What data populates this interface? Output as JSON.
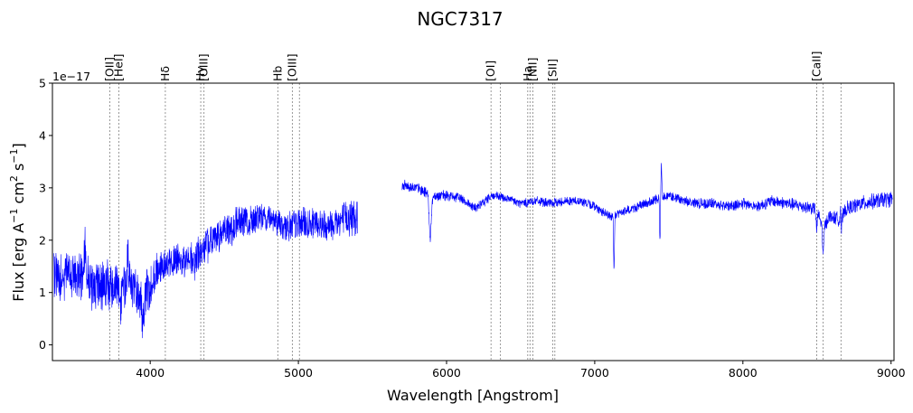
{
  "chart_data": {
    "type": "line",
    "title": "NGC7317",
    "xlabel": "Wavelength [Angstrom]",
    "ylabel_parts": {
      "main": "Flux [erg A",
      "sup1": "−1",
      "mid": " cm",
      "sup2": "2",
      "mid2": " s",
      "sup3": "−1",
      "end": "]"
    },
    "y_offset_label": "1e−17",
    "xlim": [
      3340,
      9020
    ],
    "ylim": [
      -0.3,
      5
    ],
    "xticks": [
      4000,
      5000,
      6000,
      7000,
      8000,
      9000
    ],
    "yticks": [
      0,
      1,
      2,
      3,
      4,
      5
    ],
    "series_color": "#0000ff",
    "line_color": "#808080",
    "segments": [
      {
        "x_start": 3350,
        "x_end": 5400,
        "anchors": [
          [
            3350,
            1.3
          ],
          [
            3500,
            1.35
          ],
          [
            3600,
            1.15
          ],
          [
            3700,
            1.1
          ],
          [
            3800,
            1.25
          ],
          [
            3900,
            1.0
          ],
          [
            4000,
            1.05
          ],
          [
            4050,
            1.45
          ],
          [
            4150,
            1.6
          ],
          [
            4300,
            1.6
          ],
          [
            4400,
            1.95
          ],
          [
            4500,
            2.15
          ],
          [
            4600,
            2.35
          ],
          [
            4700,
            2.4
          ],
          [
            4800,
            2.45
          ],
          [
            4900,
            2.25
          ],
          [
            5000,
            2.3
          ],
          [
            5100,
            2.3
          ],
          [
            5200,
            2.3
          ],
          [
            5300,
            2.4
          ],
          [
            5400,
            2.5
          ]
        ],
        "noise": [
          [
            3350,
            0.55
          ],
          [
            3700,
            0.55
          ],
          [
            3950,
            0.5
          ],
          [
            4100,
            0.35
          ],
          [
            4300,
            0.4
          ],
          [
            4500,
            0.4
          ],
          [
            4800,
            0.3
          ],
          [
            5000,
            0.35
          ],
          [
            5200,
            0.35
          ],
          [
            5400,
            0.45
          ]
        ],
        "features": [
          [
            3800,
            -0.5,
            15
          ],
          [
            3950,
            -0.5,
            15
          ],
          [
            3850,
            0.6,
            8
          ],
          [
            3560,
            0.8,
            6
          ]
        ]
      },
      {
        "x_start": 5700,
        "x_end": 9010,
        "anchors": [
          [
            5700,
            3.05
          ],
          [
            5800,
            3.0
          ],
          [
            5900,
            2.85
          ],
          [
            6000,
            2.85
          ],
          [
            6100,
            2.8
          ],
          [
            6200,
            2.6
          ],
          [
            6300,
            2.85
          ],
          [
            6400,
            2.8
          ],
          [
            6500,
            2.7
          ],
          [
            6600,
            2.75
          ],
          [
            6700,
            2.7
          ],
          [
            6800,
            2.75
          ],
          [
            6900,
            2.75
          ],
          [
            7000,
            2.65
          ],
          [
            7100,
            2.45
          ],
          [
            7200,
            2.55
          ],
          [
            7300,
            2.65
          ],
          [
            7400,
            2.75
          ],
          [
            7450,
            2.85
          ],
          [
            7500,
            2.85
          ],
          [
            7600,
            2.75
          ],
          [
            7700,
            2.7
          ],
          [
            7800,
            2.7
          ],
          [
            7900,
            2.65
          ],
          [
            8000,
            2.7
          ],
          [
            8100,
            2.65
          ],
          [
            8200,
            2.75
          ],
          [
            8300,
            2.7
          ],
          [
            8400,
            2.65
          ],
          [
            8500,
            2.6
          ],
          [
            8540,
            2.2
          ],
          [
            8580,
            2.45
          ],
          [
            8660,
            2.4
          ],
          [
            8700,
            2.6
          ],
          [
            8800,
            2.7
          ],
          [
            8900,
            2.75
          ],
          [
            9010,
            2.8
          ]
        ],
        "noise": [
          [
            5700,
            0.12
          ],
          [
            6500,
            0.1
          ],
          [
            7000,
            0.1
          ],
          [
            8000,
            0.12
          ],
          [
            8600,
            0.15
          ],
          [
            9010,
            0.18
          ]
        ],
        "features": [
          [
            5890,
            -0.8,
            10
          ],
          [
            7130,
            -1.1,
            4
          ],
          [
            7450,
            0.65,
            4
          ],
          [
            7440,
            -0.85,
            4
          ],
          [
            8660,
            0.7,
            4
          ],
          [
            8498,
            -0.4,
            6
          ],
          [
            8542,
            -0.5,
            6
          ],
          [
            8662,
            -0.5,
            6
          ]
        ]
      }
    ],
    "lines": [
      {
        "label": "[OII]",
        "waves": [
          3727
        ]
      },
      {
        "label": "[HeI]",
        "waves": [
          3789
        ]
      },
      {
        "label": "Hδ",
        "waves": [
          4102
        ]
      },
      {
        "label": "Hγ",
        "waves": [
          4341
        ]
      },
      {
        "label": "[OIII]",
        "waves": [
          4363
        ]
      },
      {
        "label": "Hb",
        "waves": [
          4861
        ]
      },
      {
        "label": "[OIII]",
        "waves": [
          4959,
          5007
        ]
      },
      {
        "label": "[OI]",
        "waves": [
          6300,
          6364
        ]
      },
      {
        "label": "Ha",
        "waves": [
          6548,
          6563
        ]
      },
      {
        "label": "[NII]",
        "waves": [
          6583
        ]
      },
      {
        "label": "[SII]",
        "waves": [
          6716,
          6731
        ]
      },
      {
        "label": "[CaII]",
        "waves": [
          8498,
          8542,
          8662
        ]
      }
    ]
  }
}
